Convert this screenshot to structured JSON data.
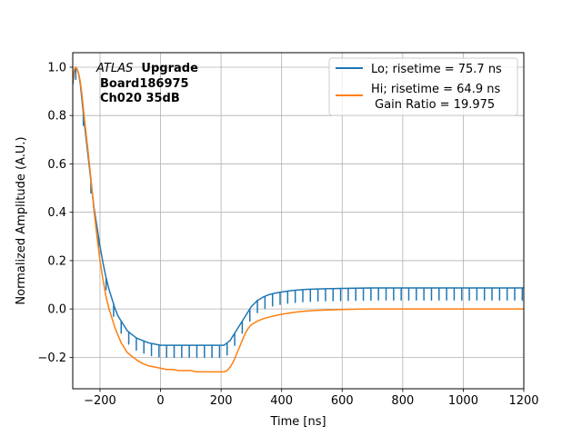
{
  "chart_data": {
    "type": "line",
    "title": "",
    "xlabel": "Time [ns]",
    "ylabel": "Normalized Amplitude (A.U.)",
    "xlim": [
      -290,
      1200
    ],
    "ylim": [
      -0.33,
      1.06
    ],
    "grid": true,
    "x_ticks": [
      -200,
      0,
      200,
      400,
      600,
      800,
      1000,
      1200
    ],
    "x_tick_labels": [
      "−200",
      "0",
      "200",
      "400",
      "600",
      "800",
      "1000",
      "1200"
    ],
    "y_ticks": [
      -0.2,
      0.0,
      0.2,
      0.4,
      0.6,
      0.8,
      1.0
    ],
    "y_tick_labels": [
      "−0.2",
      "0.0",
      "0.2",
      "0.4",
      "0.6",
      "0.8",
      "1.0"
    ],
    "annotation": {
      "experiment": "ATLAS",
      "qualifier": "Upgrade",
      "line2": "Board186975",
      "line3": "Ch020 35dB"
    },
    "legend": {
      "location": "upper right",
      "entries": [
        {
          "label": "Lo; risetime = 75.7 ns"
        },
        {
          "label_line1": "Hi; risetime = 64.9 ns",
          "label_line2": " Gain Ratio = 19.975"
        }
      ]
    },
    "series": [
      {
        "name": "Lo",
        "color": "#1f77b4",
        "line_width": 1.5,
        "spikes": {
          "spacing_ns": 25,
          "x_start": -280,
          "x_end": 1200,
          "depth": -0.05
        },
        "x": [
          -290,
          -285,
          -280,
          -275,
          -270,
          -265,
          -260,
          -255,
          -250,
          -240,
          -230,
          -220,
          -210,
          -200,
          -190,
          -180,
          -170,
          -160,
          -150,
          -140,
          -130,
          -120,
          -110,
          -100,
          -80,
          -60,
          -40,
          -20,
          0,
          20,
          40,
          60,
          80,
          100,
          120,
          140,
          160,
          180,
          200,
          210,
          220,
          230,
          240,
          250,
          260,
          270,
          280,
          290,
          300,
          320,
          340,
          360,
          380,
          400,
          420,
          440,
          460,
          480,
          500,
          550,
          600,
          650,
          700,
          800,
          900,
          1000,
          1100,
          1200
        ],
        "y": [
          0.93,
          0.98,
          1.0,
          0.99,
          0.97,
          0.93,
          0.87,
          0.81,
          0.75,
          0.64,
          0.53,
          0.42,
          0.34,
          0.26,
          0.19,
          0.13,
          0.08,
          0.04,
          0.0,
          -0.03,
          -0.05,
          -0.07,
          -0.09,
          -0.1,
          -0.12,
          -0.13,
          -0.14,
          -0.145,
          -0.15,
          -0.15,
          -0.15,
          -0.15,
          -0.15,
          -0.15,
          -0.15,
          -0.15,
          -0.15,
          -0.15,
          -0.15,
          -0.15,
          -0.14,
          -0.13,
          -0.11,
          -0.09,
          -0.07,
          -0.05,
          -0.03,
          -0.01,
          0.01,
          0.035,
          0.05,
          0.06,
          0.066,
          0.07,
          0.074,
          0.077,
          0.079,
          0.081,
          0.082,
          0.084,
          0.085,
          0.086,
          0.087,
          0.087,
          0.087,
          0.087,
          0.087,
          0.087
        ]
      },
      {
        "name": "Hi",
        "color": "#ff7f0e",
        "line_width": 1.5,
        "x": [
          -290,
          -285,
          -280,
          -275,
          -270,
          -265,
          -260,
          -255,
          -250,
          -240,
          -230,
          -220,
          -210,
          -200,
          -190,
          -180,
          -170,
          -160,
          -150,
          -140,
          -130,
          -120,
          -110,
          -100,
          -80,
          -60,
          -40,
          -20,
          0,
          20,
          40,
          60,
          80,
          100,
          120,
          140,
          160,
          180,
          200,
          210,
          220,
          230,
          240,
          250,
          260,
          270,
          280,
          290,
          300,
          320,
          340,
          360,
          380,
          400,
          420,
          440,
          460,
          480,
          500,
          550,
          600,
          650,
          700,
          800,
          900,
          1000,
          1100,
          1200
        ],
        "y": [
          0.94,
          0.99,
          1.0,
          0.99,
          0.97,
          0.94,
          0.89,
          0.83,
          0.77,
          0.66,
          0.54,
          0.41,
          0.3,
          0.2,
          0.12,
          0.05,
          0.0,
          -0.04,
          -0.08,
          -0.11,
          -0.14,
          -0.16,
          -0.18,
          -0.19,
          -0.21,
          -0.225,
          -0.235,
          -0.24,
          -0.245,
          -0.25,
          -0.25,
          -0.255,
          -0.255,
          -0.255,
          -0.26,
          -0.26,
          -0.26,
          -0.26,
          -0.26,
          -0.26,
          -0.255,
          -0.24,
          -0.22,
          -0.19,
          -0.16,
          -0.13,
          -0.1,
          -0.08,
          -0.065,
          -0.05,
          -0.04,
          -0.033,
          -0.027,
          -0.022,
          -0.018,
          -0.014,
          -0.011,
          -0.009,
          -0.007,
          -0.004,
          -0.002,
          -0.001,
          0.0,
          0.0,
          0.0,
          0.0,
          0.0,
          0.0
        ]
      }
    ]
  }
}
